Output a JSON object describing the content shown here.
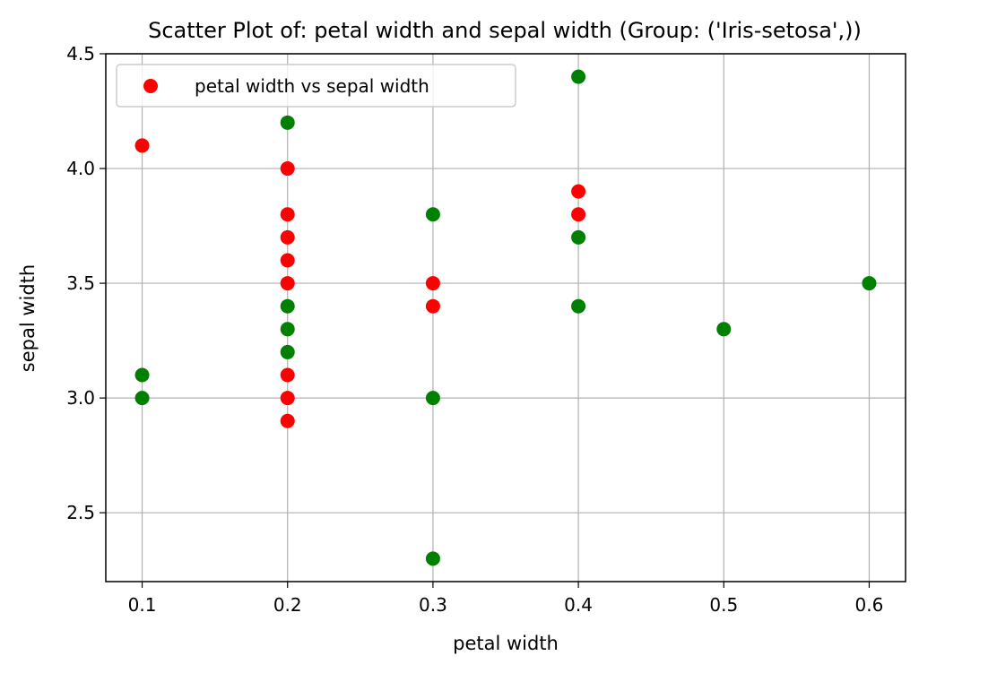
{
  "chart_data": {
    "type": "scatter",
    "title": "Scatter Plot of: petal width and sepal width (Group: ('Iris-setosa',))",
    "xlabel": "petal width",
    "ylabel": "sepal width",
    "xlim": [
      0.075,
      0.625
    ],
    "ylim": [
      2.2,
      4.5
    ],
    "xticks": [
      "0.1",
      "0.2",
      "0.3",
      "0.4",
      "0.5",
      "0.6"
    ],
    "yticks": [
      "2.5",
      "3.0",
      "3.5",
      "4.0",
      "4.5"
    ],
    "grid": true,
    "legend_position": "upper-left",
    "series": [
      {
        "name": "petal width vs sepal width",
        "color": "#ff0000",
        "points": [
          [
            0.1,
            4.1
          ],
          [
            0.2,
            4.0
          ],
          [
            0.2,
            3.8
          ],
          [
            0.2,
            3.7
          ],
          [
            0.2,
            3.6
          ],
          [
            0.2,
            3.5
          ],
          [
            0.2,
            3.1
          ],
          [
            0.2,
            3.0
          ],
          [
            0.2,
            2.9
          ],
          [
            0.3,
            3.5
          ],
          [
            0.3,
            3.4
          ],
          [
            0.4,
            3.9
          ],
          [
            0.4,
            3.8
          ]
        ]
      },
      {
        "color": "#008000",
        "points": [
          [
            0.1,
            3.1
          ],
          [
            0.1,
            3.0
          ],
          [
            0.2,
            4.2
          ],
          [
            0.2,
            3.4
          ],
          [
            0.2,
            3.3
          ],
          [
            0.2,
            3.2
          ],
          [
            0.3,
            3.8
          ],
          [
            0.3,
            3.0
          ],
          [
            0.3,
            2.3
          ],
          [
            0.4,
            4.4
          ],
          [
            0.4,
            3.7
          ],
          [
            0.4,
            3.4
          ],
          [
            0.5,
            3.3
          ],
          [
            0.6,
            3.5
          ]
        ]
      }
    ]
  }
}
